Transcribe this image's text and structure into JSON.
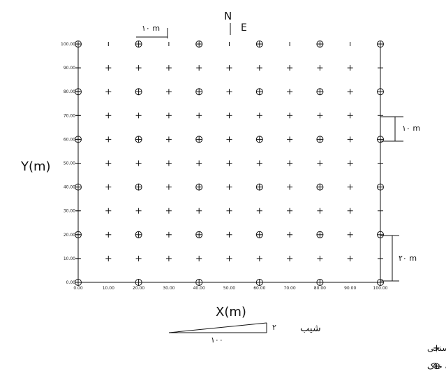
{
  "north_arrow": {
    "n_label": "N",
    "e_label": "E"
  },
  "axes": {
    "x_title": "X(m)",
    "y_title": "Y(m)",
    "x_ticks": [
      "0.00",
      "10.00",
      "20.00",
      "30.00",
      "40.00",
      "50.00",
      "60.00",
      "70.00",
      "80.00",
      "90.00",
      "100.00"
    ],
    "y_ticks": [
      "0.00",
      "10.00",
      "20.00",
      "30.00",
      "40.00",
      "50.00",
      "60.00",
      "70.00",
      "80.00",
      "90.00",
      "100.00"
    ]
  },
  "scale_bars": {
    "top": "۱۰ m",
    "right_upper": "۱۰ m",
    "right_lower": "۲۰ m"
  },
  "slope": {
    "label": "شیب",
    "rise": "۲",
    "run": "۱۰۰"
  },
  "legend": {
    "plus_text": "نقاط مربوط به آزمایش نفوذسنجی",
    "circle_text": "نقاط مربوط به نمونه گیری خاک جهت تعیین رطوبت خاک",
    "plus_symbol": "+",
    "circle_symbol": "⊕"
  },
  "points": {
    "x_values": [
      0,
      10,
      20,
      30,
      40,
      50,
      60,
      70,
      80,
      90,
      100
    ],
    "y_values": [
      0,
      10,
      20,
      30,
      40,
      50,
      60,
      70,
      80,
      90,
      100
    ],
    "sampling_circles": [
      [
        0,
        100
      ],
      [
        20,
        100
      ],
      [
        40,
        100
      ],
      [
        60,
        100
      ],
      [
        80,
        100
      ],
      [
        100,
        100
      ],
      [
        0,
        80
      ],
      [
        20,
        80
      ],
      [
        40,
        80
      ],
      [
        60,
        80
      ],
      [
        80,
        80
      ],
      [
        100,
        80
      ],
      [
        0,
        60
      ],
      [
        20,
        60
      ],
      [
        40,
        60
      ],
      [
        60,
        60
      ],
      [
        80,
        60
      ],
      [
        100,
        60
      ],
      [
        0,
        40
      ],
      [
        20,
        40
      ],
      [
        40,
        40
      ],
      [
        60,
        40
      ],
      [
        80,
        40
      ],
      [
        100,
        40
      ],
      [
        0,
        20
      ],
      [
        20,
        20
      ],
      [
        40,
        20
      ],
      [
        60,
        20
      ],
      [
        80,
        20
      ],
      [
        100,
        20
      ],
      [
        0,
        0
      ],
      [
        20,
        0
      ],
      [
        40,
        0
      ],
      [
        60,
        0
      ],
      [
        80,
        0
      ],
      [
        100,
        0
      ]
    ],
    "top_row_dashes": [
      10,
      30,
      50,
      70,
      90
    ]
  }
}
